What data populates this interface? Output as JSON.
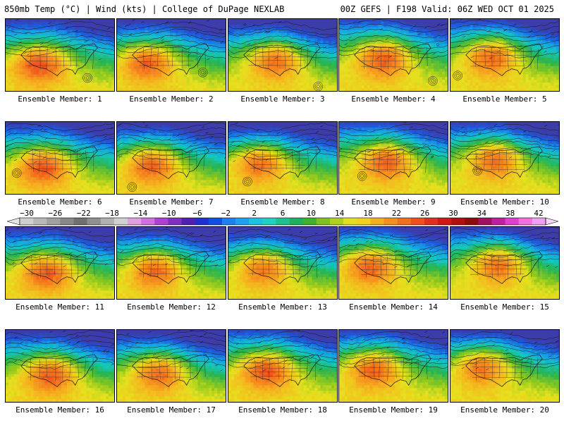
{
  "header": {
    "title_left": "850mb Temp (°C) | Wind (kts) | College of DuPage NEXLAB",
    "title_right": "00Z GEFS | F198 Valid: 06Z WED OCT 01 2025"
  },
  "panels": [
    {
      "label": "Ensemble Member: 1"
    },
    {
      "label": "Ensemble Member: 2"
    },
    {
      "label": "Ensemble Member: 3"
    },
    {
      "label": "Ensemble Member: 4"
    },
    {
      "label": "Ensemble Member: 5"
    },
    {
      "label": "Ensemble Member: 6"
    },
    {
      "label": "Ensemble Member: 7"
    },
    {
      "label": "Ensemble Member: 8"
    },
    {
      "label": "Ensemble Member: 9"
    },
    {
      "label": "Ensemble Member: 10"
    },
    {
      "label": "Ensemble Member: 11"
    },
    {
      "label": "Ensemble Member: 12"
    },
    {
      "label": "Ensemble Member: 13"
    },
    {
      "label": "Ensemble Member: 14"
    },
    {
      "label": "Ensemble Member: 15"
    },
    {
      "label": "Ensemble Member: 16"
    },
    {
      "label": "Ensemble Member: 17"
    },
    {
      "label": "Ensemble Member: 18"
    },
    {
      "label": "Ensemble Member: 19"
    },
    {
      "label": "Ensemble Member: 20"
    }
  ],
  "colorbar": {
    "labels": [
      "−30",
      "−26",
      "−22",
      "−18",
      "−14",
      "−10",
      "−6",
      "−2",
      "2",
      "6",
      "10",
      "14",
      "18",
      "22",
      "26",
      "30",
      "34",
      "38",
      "42"
    ],
    "colors": [
      "#cfcfcf",
      "#b8b8b8",
      "#a0a0a0",
      "#888888",
      "#707070",
      "#909090",
      "#b0b0b0",
      "#d0d0d0",
      "#e0a0e0",
      "#d070e0",
      "#b040d0",
      "#8030c0",
      "#5020b0",
      "#2030d0",
      "#1050e0",
      "#2080f0",
      "#20a0f0",
      "#20c0e0",
      "#20d0c0",
      "#20c090",
      "#20b060",
      "#40b030",
      "#80c020",
      "#b0d020",
      "#e0e020",
      "#f0d020",
      "#f0b020",
      "#f09020",
      "#f07020",
      "#f05020",
      "#e03020",
      "#d01818",
      "#b01010",
      "#900c0c",
      "#a01060",
      "#c020a0",
      "#e040d0",
      "#f070e0",
      "#f0a0f0"
    ]
  }
}
